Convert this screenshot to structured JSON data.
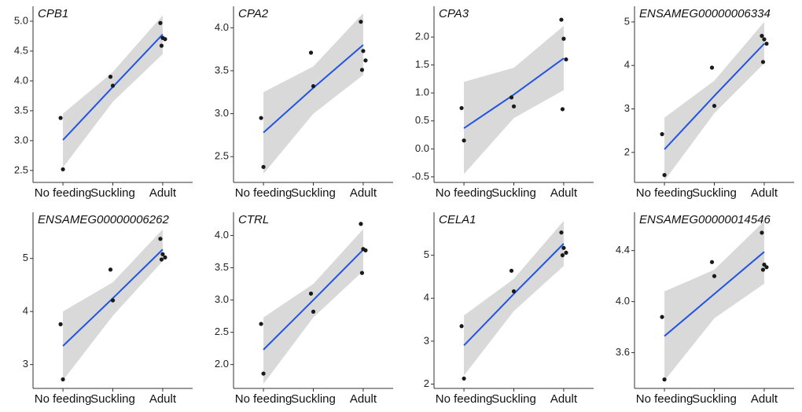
{
  "chart_data": [
    {
      "type": "scatter",
      "title": "CPB1",
      "categories": [
        "No feeding",
        "Suckling",
        "Adult"
      ],
      "groups": [
        [
          3.38,
          2.52
        ],
        [
          4.07,
          3.92
        ],
        [
          4.97,
          4.72,
          4.7,
          4.59
        ]
      ],
      "fit": [
        3.01,
        3.9,
        4.78
      ],
      "band_lower": [
        2.55,
        3.65,
        4.45
      ],
      "band_upper": [
        3.45,
        4.15,
        5.1
      ],
      "ylim": [
        2.3,
        5.25
      ],
      "yticks": [
        2.5,
        {
          "value": 3,
          "label": "3.0"
        },
        3.5,
        {
          "value": 4,
          "label": "4.0"
        },
        4.5,
        {
          "value": 5,
          "label": "5.0"
        }
      ],
      "point_color": "#1a1a1a",
      "line_color": "#2155e0",
      "band_color": "#d9d9d9"
    },
    {
      "type": "scatter",
      "title": "CPA2",
      "categories": [
        "No feeding",
        "Suckling",
        "Adult"
      ],
      "groups": [
        [
          2.95,
          2.38
        ],
        [
          3.71,
          3.32
        ],
        [
          4.07,
          3.73,
          3.62,
          3.51
        ]
      ],
      "fit": [
        2.78,
        3.3,
        3.8
      ],
      "band_lower": [
        2.3,
        3.0,
        3.45
      ],
      "band_upper": [
        3.25,
        3.55,
        4.17
      ],
      "ylim": [
        2.2,
        4.25
      ],
      "yticks": [
        2.5,
        {
          "value": 3,
          "label": "3.0"
        },
        3.5,
        {
          "value": 4,
          "label": "4.0"
        }
      ],
      "point_color": "#1a1a1a",
      "line_color": "#2155e0",
      "band_color": "#d9d9d9"
    },
    {
      "type": "scatter",
      "title": "CPA3",
      "categories": [
        "No feeding",
        "Suckling",
        "Adult"
      ],
      "groups": [
        [
          0.73,
          0.15
        ],
        [
          0.92,
          0.76
        ],
        [
          2.31,
          1.97,
          1.6,
          0.71
        ]
      ],
      "fit": [
        0.37,
        0.97,
        1.62
      ],
      "band_lower": [
        -0.45,
        0.55,
        1.05
      ],
      "band_upper": [
        1.2,
        1.45,
        2.2
      ],
      "ylim": [
        -0.6,
        2.55
      ],
      "yticks": [
        -0.5,
        {
          "value": 0,
          "label": "0.0"
        },
        0.5,
        {
          "value": 1,
          "label": "1.0"
        },
        1.5,
        {
          "value": 2,
          "label": "2.0"
        }
      ],
      "point_color": "#1a1a1a",
      "line_color": "#2155e0",
      "band_color": "#d9d9d9"
    },
    {
      "type": "scatter",
      "title": "ENSAMEG00000006334",
      "categories": [
        "No feeding",
        "Suckling",
        "Adult"
      ],
      "groups": [
        [
          2.42,
          1.48
        ],
        [
          3.95,
          3.07
        ],
        [
          4.68,
          4.6,
          4.5,
          4.08
        ]
      ],
      "fit": [
        2.07,
        3.3,
        4.5
      ],
      "band_lower": [
        1.35,
        2.9,
        4.05
      ],
      "band_upper": [
        2.8,
        3.65,
        5.0
      ],
      "ylim": [
        1.31,
        5.36
      ],
      "yticks": [
        2,
        3,
        4,
        5
      ],
      "point_color": "#1a1a1a",
      "line_color": "#2155e0",
      "band_color": "#d9d9d9"
    },
    {
      "type": "scatter",
      "title": "ENSAMEG00000006262",
      "categories": [
        "No feeding",
        "Suckling",
        "Adult"
      ],
      "groups": [
        [
          3.76,
          2.72
        ],
        [
          4.79,
          4.21
        ],
        [
          5.37,
          5.08,
          5.02,
          4.98
        ]
      ],
      "fit": [
        3.35,
        4.25,
        5.17
      ],
      "band_lower": [
        2.7,
        3.92,
        4.95
      ],
      "band_upper": [
        4.0,
        4.55,
        5.55
      ],
      "ylim": [
        2.55,
        5.87
      ],
      "yticks": [
        3,
        4,
        5
      ],
      "point_color": "#1a1a1a",
      "line_color": "#2155e0",
      "band_color": "#d9d9d9"
    },
    {
      "type": "scatter",
      "title": "CTRL",
      "categories": [
        "No feeding",
        "Suckling",
        "Adult"
      ],
      "groups": [
        [
          2.63,
          1.86
        ],
        [
          3.1,
          2.82
        ],
        [
          4.18,
          3.79,
          3.77,
          3.42
        ]
      ],
      "fit": [
        2.23,
        3.0,
        3.78
      ],
      "band_lower": [
        1.7,
        2.73,
        3.45
      ],
      "band_upper": [
        2.73,
        3.25,
        4.1
      ],
      "ylim": [
        1.63,
        4.36
      ],
      "yticks": [
        {
          "value": 2,
          "label": "2.0"
        },
        2.5,
        {
          "value": 3,
          "label": "3.0"
        },
        3.5,
        {
          "value": 4,
          "label": "4.0"
        }
      ],
      "point_color": "#1a1a1a",
      "line_color": "#2155e0",
      "band_color": "#d9d9d9"
    },
    {
      "type": "scatter",
      "title": "CELA1",
      "categories": [
        "No feeding",
        "Suckling",
        "Adult"
      ],
      "groups": [
        [
          3.35,
          2.13
        ],
        [
          4.64,
          4.16
        ],
        [
          5.53,
          5.17,
          5.06,
          5.0
        ]
      ],
      "fit": [
        2.9,
        4.1,
        5.27
      ],
      "band_lower": [
        2.2,
        3.7,
        4.75
      ],
      "band_upper": [
        3.6,
        4.45,
        5.8
      ],
      "ylim": [
        1.9,
        6.0
      ],
      "yticks": [
        2,
        3,
        4,
        5
      ],
      "point_color": "#1a1a1a",
      "line_color": "#2155e0",
      "band_color": "#d9d9d9"
    },
    {
      "type": "scatter",
      "title": "ENSAMEG00000014546",
      "categories": [
        "No feeding",
        "Suckling",
        "Adult"
      ],
      "groups": [
        [
          3.88,
          3.39
        ],
        [
          4.31,
          4.2
        ],
        [
          4.54,
          4.29,
          4.27,
          4.25
        ]
      ],
      "fit": [
        3.73,
        4.06,
        4.39
      ],
      "band_lower": [
        3.38,
        3.87,
        4.14
      ],
      "band_upper": [
        4.08,
        4.25,
        4.63
      ],
      "ylim": [
        3.32,
        4.7
      ],
      "yticks": [
        3.6,
        {
          "value": 4,
          "label": "4.0"
        },
        4.4
      ],
      "point_color": "#1a1a1a",
      "line_color": "#2155e0",
      "band_color": "#d9d9d9"
    }
  ]
}
